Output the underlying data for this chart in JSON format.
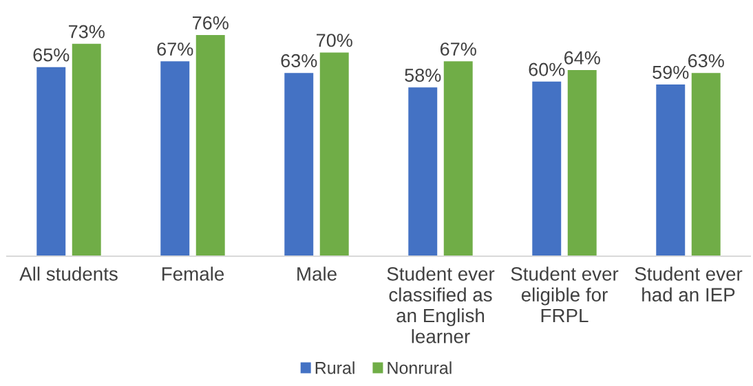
{
  "chart_data": {
    "type": "bar",
    "categories": [
      "All students",
      "Female",
      "Male",
      "Student ever\nclassified as\nan English\nlearner",
      "Student ever\neligible for\nFRPL",
      "Student ever\nhad an IEP"
    ],
    "series": [
      {
        "name": "Rural",
        "color": "#4472c4",
        "values": [
          65,
          67,
          63,
          58,
          60,
          59
        ],
        "value_labels": [
          "65%",
          "67%",
          "63%",
          "58%",
          "60%",
          "59%"
        ]
      },
      {
        "name": "Nonrural",
        "color": "#70ad47",
        "values": [
          73,
          76,
          70,
          67,
          64,
          63
        ],
        "value_labels": [
          "73%",
          "76%",
          "70%",
          "67%",
          "64%",
          "63%"
        ]
      }
    ],
    "legend": "bottom",
    "grid": false,
    "tick_labels": "x"
  }
}
